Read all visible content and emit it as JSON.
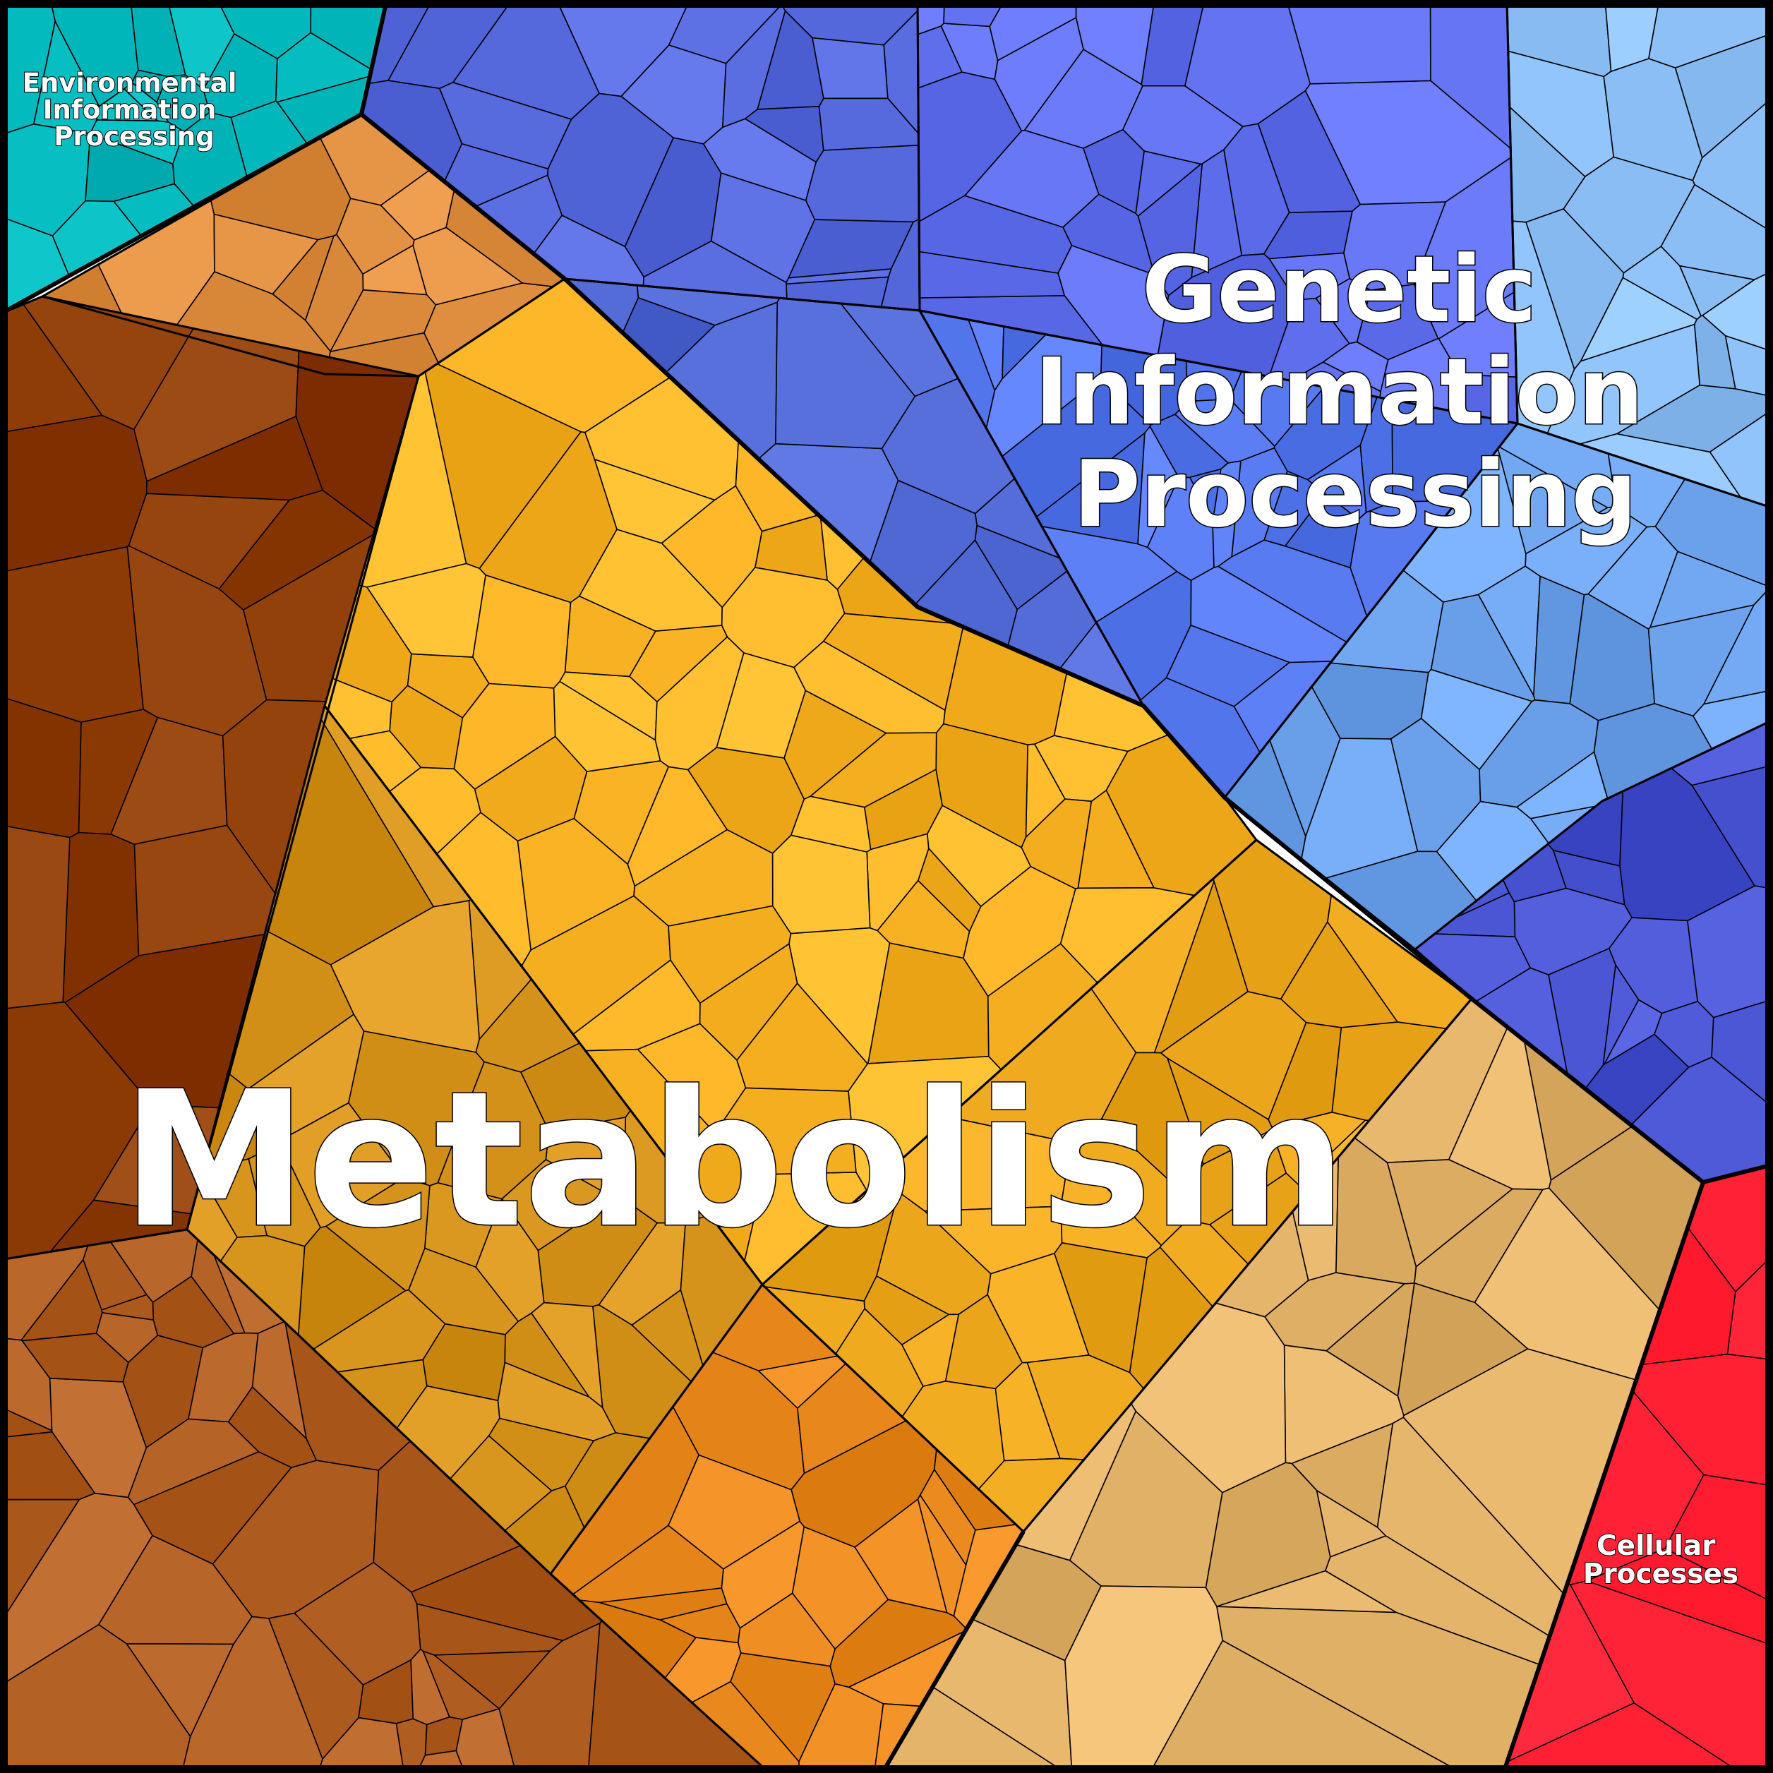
{
  "diagram": {
    "type": "voronoi-treemap",
    "colors": {
      "border": "#000000",
      "label_fill": "#ffffff",
      "label_stroke": "#000000"
    },
    "regions": [
      {
        "id": "env",
        "label_lines": [
          "Environmental",
          "Information",
          "Processing"
        ],
        "color": "#00b8bc",
        "label_size": "small"
      },
      {
        "id": "genetic",
        "label_lines": [
          "Genetic",
          "Information",
          "Processing"
        ],
        "color": "#5a6fe6",
        "label_size": "large"
      },
      {
        "id": "metabolism",
        "label_lines": [
          "Metabolism"
        ],
        "color": "#f7b12a",
        "label_size": "xlarge"
      },
      {
        "id": "cellular",
        "label_lines": [
          "Cellular",
          "Processes"
        ],
        "color": "#ff1a2e",
        "label_size": "small"
      }
    ]
  }
}
